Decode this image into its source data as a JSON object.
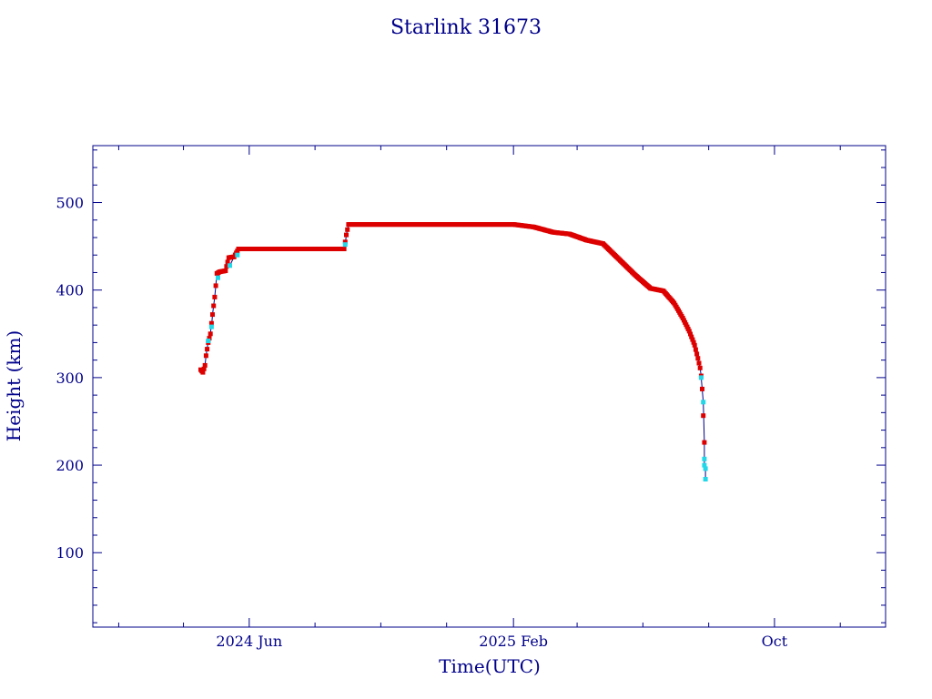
{
  "chart_data": {
    "type": "scatter",
    "title": "Starlink 31673",
    "xlabel": "Time(UTC)",
    "ylabel": "Height (km)",
    "ylim": [
      15,
      565
    ],
    "xlim": [
      "2024-01-08",
      "2026-01-12"
    ],
    "x_tick_labels": [
      {
        "date": "2024-06-01",
        "label": "2024 Jun"
      },
      {
        "date": "2025-02-01",
        "label": "2025 Feb"
      },
      {
        "date": "2025-10-01",
        "label": "Oct"
      }
    ],
    "y_ticks": [
      100,
      200,
      300,
      400,
      500
    ],
    "grid": false,
    "colors": {
      "axis": "#00008b",
      "line": "#00008b",
      "main_marker": "#dd0000",
      "alt_marker": "#22d8e8"
    },
    "series": [
      {
        "marker_color": "#dd0000",
        "points": [
          [
            "2024-04-17",
            309
          ],
          [
            "2024-04-19",
            306
          ],
          [
            "2024-04-21",
            314
          ],
          [
            "2024-04-22",
            325
          ],
          [
            "2024-04-24",
            340
          ],
          [
            "2024-04-26",
            350
          ],
          [
            "2024-04-27",
            362
          ],
          [
            "2024-04-28",
            372
          ],
          [
            "2024-04-30",
            392
          ],
          [
            "2024-05-01",
            405
          ],
          [
            "2024-05-02",
            419
          ],
          [
            "2024-05-05",
            421
          ],
          [
            "2024-05-10",
            422
          ],
          [
            "2024-05-13",
            437
          ],
          [
            "2024-05-18",
            438
          ],
          [
            "2024-05-22",
            447
          ],
          [
            "2024-06-15",
            447
          ],
          [
            "2024-07-15",
            447
          ],
          [
            "2024-08-15",
            447
          ],
          [
            "2024-08-28",
            447
          ],
          [
            "2024-08-30",
            463
          ],
          [
            "2024-09-01",
            475
          ],
          [
            "2024-10-01",
            475
          ],
          [
            "2024-11-15",
            475
          ],
          [
            "2025-01-01",
            475
          ],
          [
            "2025-02-01",
            475
          ],
          [
            "2025-02-20",
            472
          ],
          [
            "2025-03-10",
            466
          ],
          [
            "2025-03-25",
            464
          ],
          [
            "2025-04-10",
            457
          ],
          [
            "2025-04-25",
            453
          ],
          [
            "2025-05-10",
            435
          ],
          [
            "2025-05-25",
            417
          ],
          [
            "2025-06-08",
            402
          ],
          [
            "2025-06-20",
            399
          ],
          [
            "2025-06-30",
            385
          ],
          [
            "2025-07-08",
            368
          ],
          [
            "2025-07-14",
            353
          ],
          [
            "2025-07-19",
            337
          ],
          [
            "2025-07-22",
            322
          ],
          [
            "2025-07-24",
            311
          ],
          [
            "2025-07-25",
            302
          ],
          [
            "2025-07-26",
            287
          ],
          [
            "2025-07-28",
            226
          ]
        ]
      },
      {
        "marker_color": "#22d8e8",
        "points": [
          [
            "2024-04-24",
            342
          ],
          [
            "2024-04-27",
            358
          ],
          [
            "2024-05-03",
            414
          ],
          [
            "2024-05-14",
            428
          ],
          [
            "2024-05-21",
            440
          ],
          [
            "2024-08-29",
            452
          ],
          [
            "2025-07-25",
            300
          ],
          [
            "2025-07-27",
            272
          ],
          [
            "2025-07-28",
            207
          ],
          [
            "2025-07-28",
            200
          ],
          [
            "2025-07-29",
            196
          ],
          [
            "2025-07-29",
            184
          ]
        ]
      }
    ]
  }
}
